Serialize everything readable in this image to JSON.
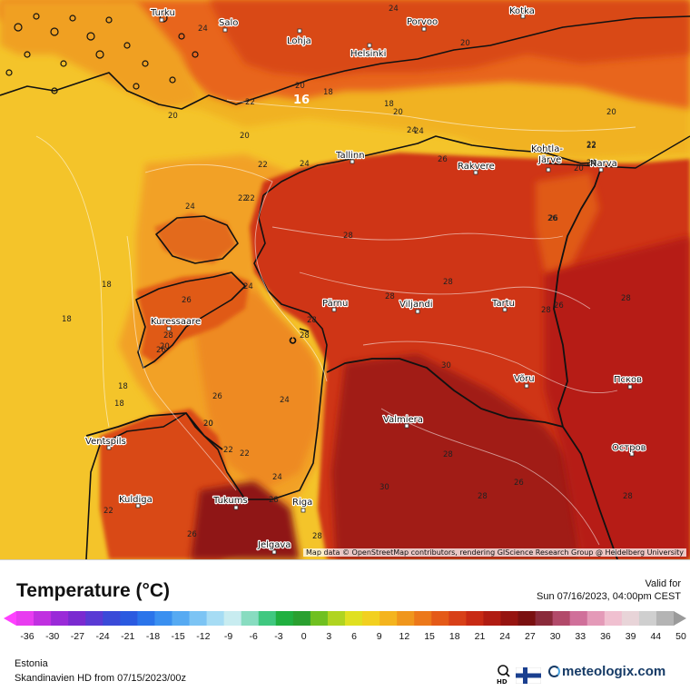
{
  "map": {
    "attribution": "Map data © OpenStreetMap contributors, rendering GIScience Research Group @ Heidelberg University",
    "cities": [
      {
        "name": "Turku"
      },
      {
        "name": "Salo"
      },
      {
        "name": "Lohja"
      },
      {
        "name": "Helsinki"
      },
      {
        "name": "Porvoo"
      },
      {
        "name": "Kotka"
      },
      {
        "name": "Tallinn"
      },
      {
        "name": "Rakvere"
      },
      {
        "name": "Kohtla-\nJärve"
      },
      {
        "name": "Narva"
      },
      {
        "name": "Pärnu"
      },
      {
        "name": "Viljandi"
      },
      {
        "name": "Tartu"
      },
      {
        "name": "Kuressaare"
      },
      {
        "name": "Võru"
      },
      {
        "name": "Псков"
      },
      {
        "name": "Valmiera"
      },
      {
        "name": "Ventspils"
      },
      {
        "name": "Острoв"
      },
      {
        "name": "Kuldiga"
      },
      {
        "name": "Tukums"
      },
      {
        "name": "Riga"
      },
      {
        "name": "Jelgava"
      }
    ],
    "isotherm_labels": [
      "24",
      "24",
      "20",
      "22",
      "20",
      "20",
      "18",
      "18",
      "20",
      "16",
      "24",
      "20",
      "22",
      "20",
      "24",
      "20",
      "22",
      "24",
      "26",
      "22",
      "24",
      "28",
      "28",
      "28",
      "26",
      "24",
      "26",
      "26",
      "28",
      "28",
      "28",
      "28",
      "26",
      "28",
      "26",
      "24",
      "20",
      "22",
      "18",
      "18",
      "18",
      "18",
      "20",
      "20",
      "22",
      "22",
      "28",
      "28",
      "24",
      "26",
      "28",
      "30",
      "30",
      "26",
      "28",
      "28",
      "22",
      "24",
      "26",
      "22"
    ],
    "label_16": "16"
  },
  "legend": {
    "title": "Temperature (°C)",
    "valid_for": "Valid for",
    "valid_time": "Sun 07/16/2023, 04:00pm CEST",
    "ticks": [
      "-36",
      "-30",
      "-27",
      "-24",
      "-21",
      "-18",
      "-15",
      "-12",
      "-9",
      "-6",
      "-3",
      "0",
      "3",
      "6",
      "9",
      "12",
      "15",
      "18",
      "21",
      "24",
      "27",
      "30",
      "33",
      "36",
      "39",
      "44",
      "50"
    ],
    "region": "Estonia",
    "model": "Skandinavien HD from  07/15/2023/00z",
    "brand": "meteologix.com",
    "hd_badge": "HD"
  },
  "colors": {
    "sea_cool": "#f4c42a",
    "warm_20": "#f3a626",
    "warm_24": "#ea7a1e",
    "warm_26": "#e05a18",
    "hot_28": "#cf3414",
    "hot_30": "#b61f12",
    "hot_32": "#8f1512",
    "border": "#111111",
    "brand_blue": "#153a66"
  }
}
